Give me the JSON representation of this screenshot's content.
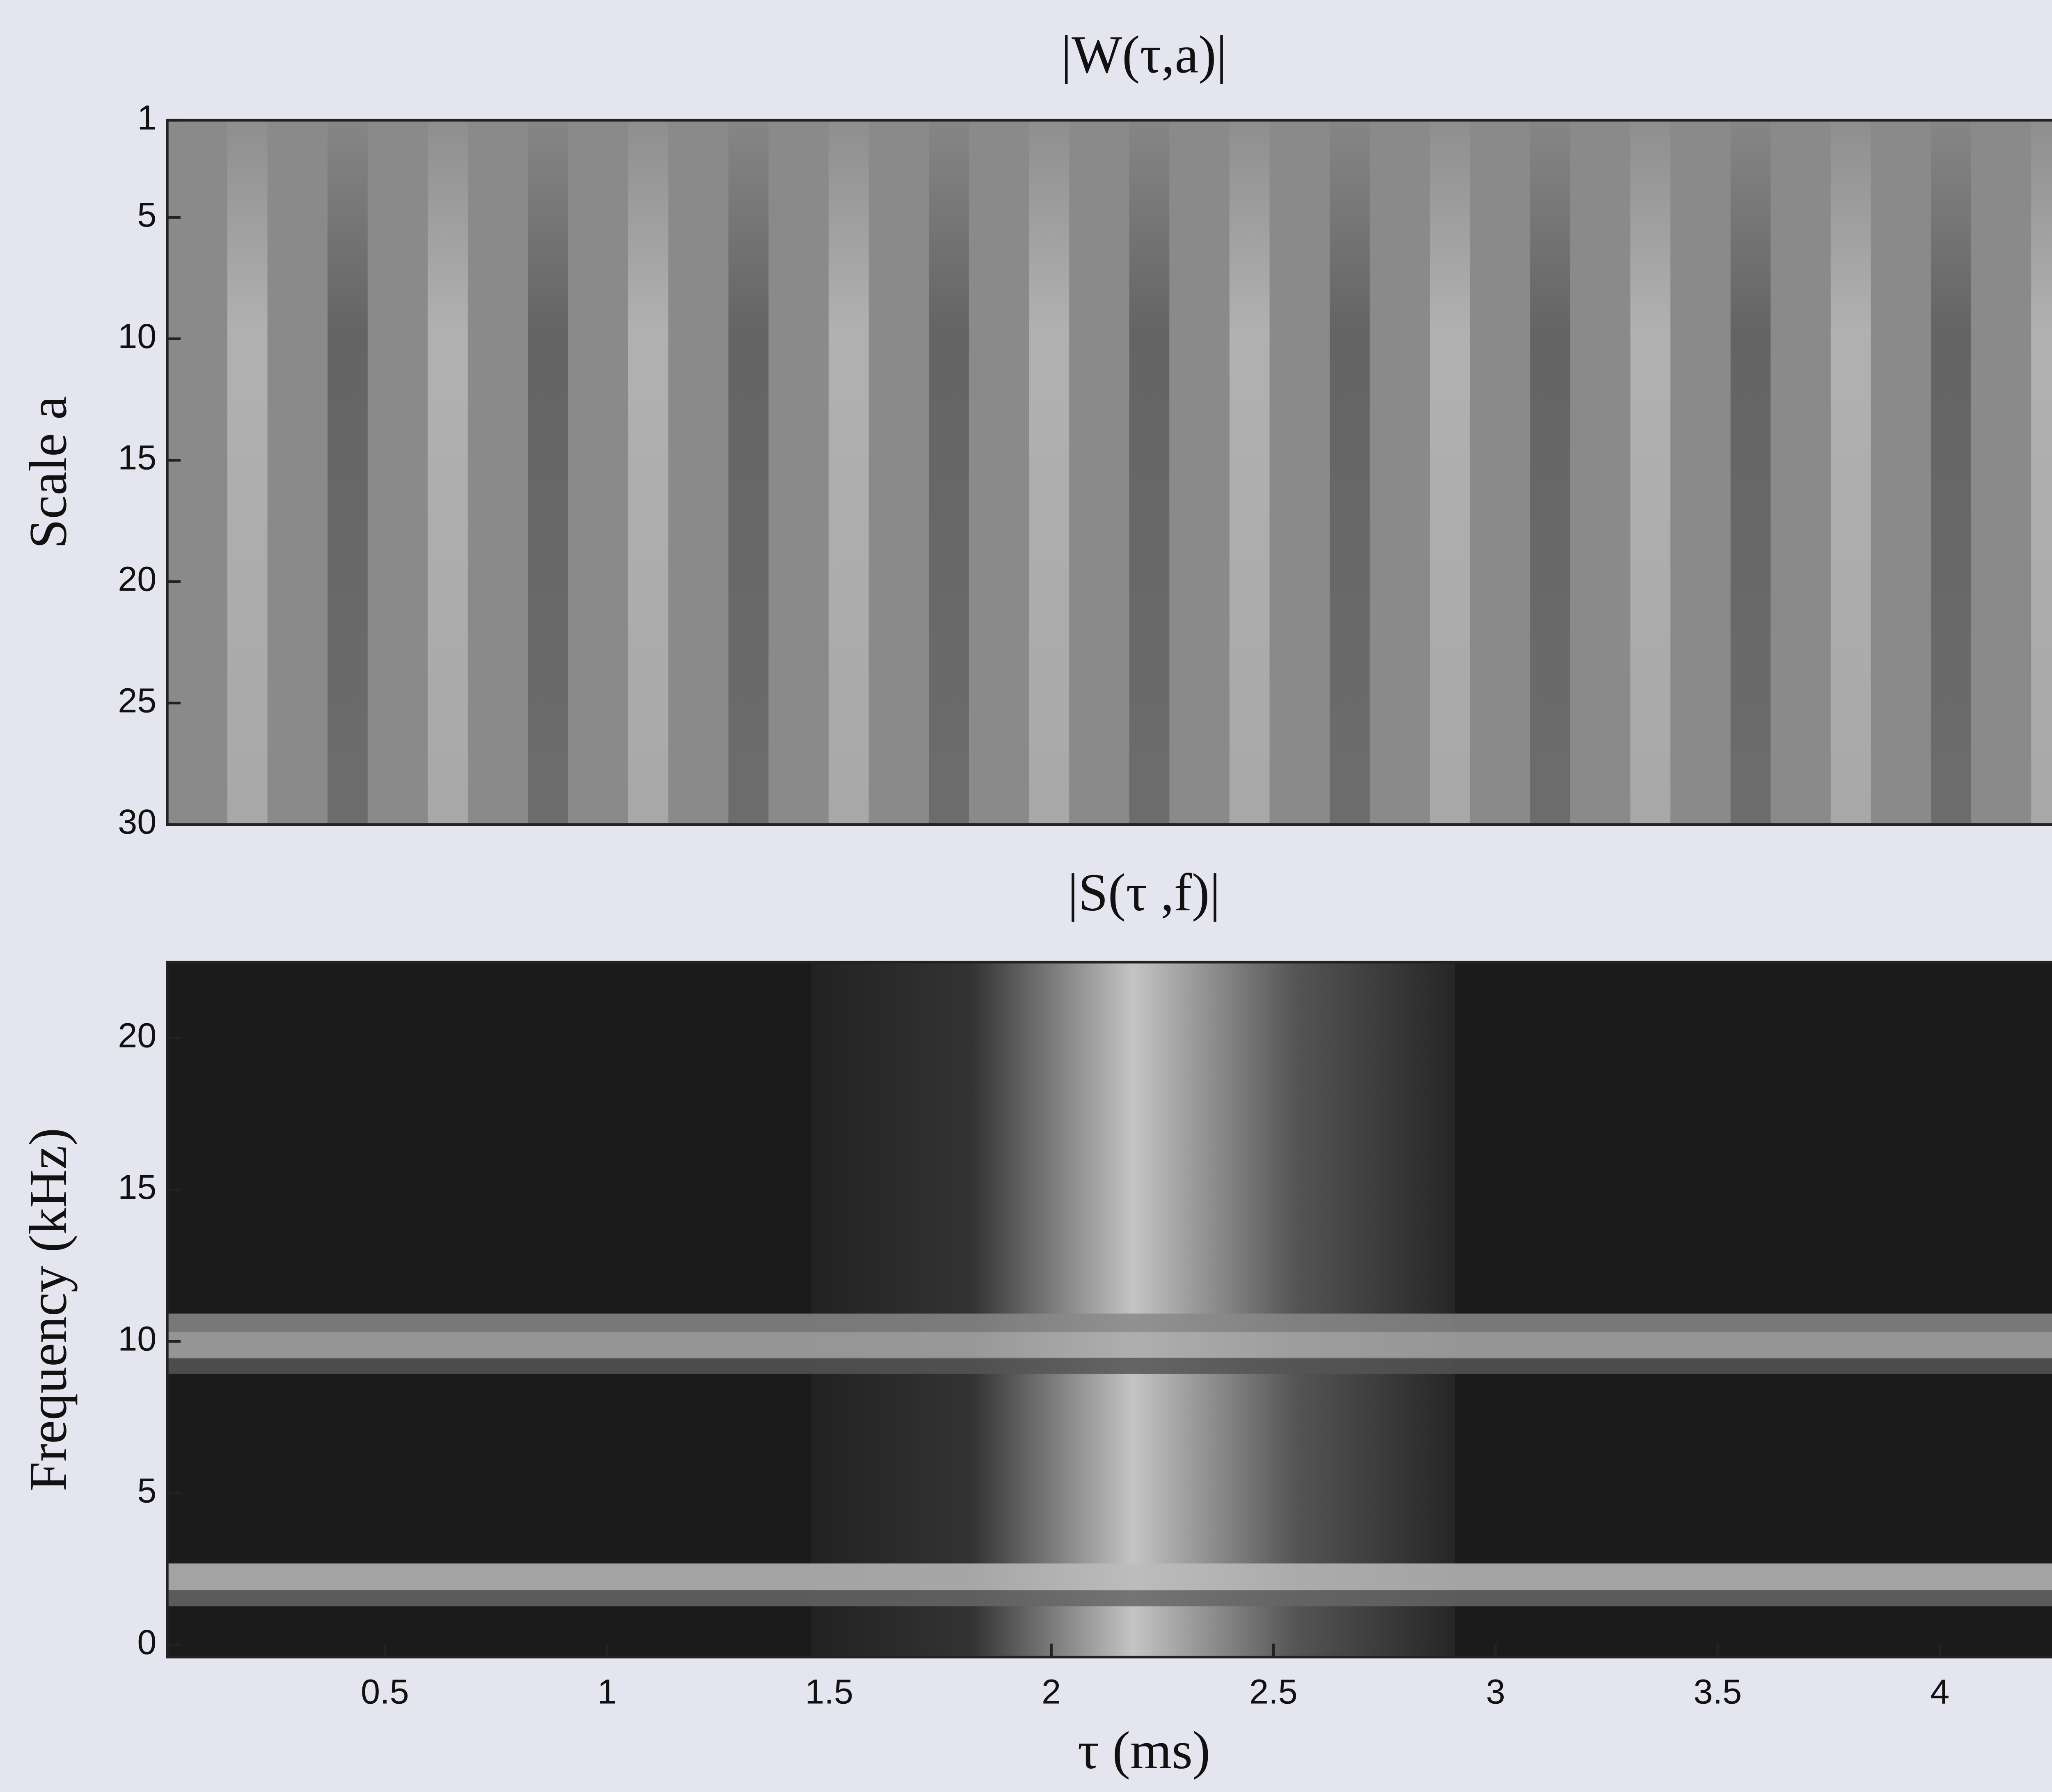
{
  "chart_data": [
    {
      "type": "heatmap",
      "title": "|W(τ,a)|",
      "ylabel": "Scale a",
      "xlim": [
        0.01,
        4.35
      ],
      "ylim": [
        1,
        30
      ],
      "y_inverted": true,
      "yticks": [
        1,
        5,
        10,
        15,
        20,
        25,
        30
      ]
    },
    {
      "type": "heatmap",
      "title": "|S(τ ,f)|",
      "xlabel": "τ (ms)",
      "ylabel": "Frequency (kHz)",
      "xlim": [
        0.01,
        4.35
      ],
      "ylim": [
        -0.4,
        22.5
      ],
      "xticks": [
        0.5,
        1,
        1.5,
        2,
        2.5,
        3,
        3.5,
        4
      ],
      "yticks": [
        0,
        5,
        10,
        15,
        20
      ]
    }
  ]
}
